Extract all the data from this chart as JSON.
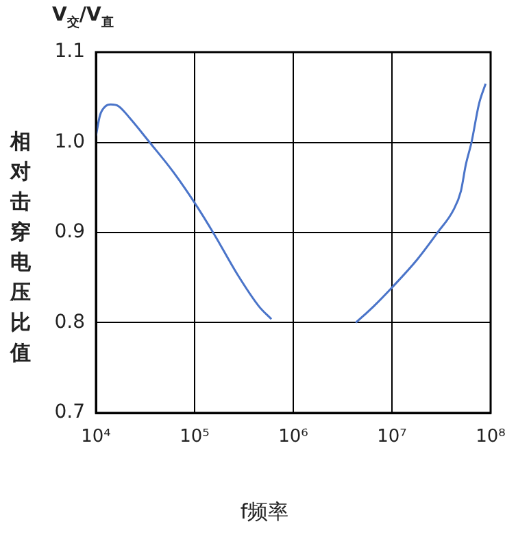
{
  "chart_data": {
    "type": "line",
    "xlabel": "f频率",
    "ylabel": "相对击穿电压比值",
    "annotations": [
      "V$_{交}$/V$_{直}$"
    ],
    "log": "x",
    "grid": true,
    "marker": "none",
    "line_style": "solid",
    "xlim": [
      10000,
      100000000
    ],
    "ylim": [
      0.7,
      1.1
    ],
    "xticks": [
      {
        "value": 10000,
        "label": "10⁴"
      },
      {
        "value": 100000,
        "label": "10⁵"
      },
      {
        "value": 1000000,
        "label": "10⁶"
      },
      {
        "value": 10000000,
        "label": "10⁷"
      },
      {
        "value": 100000000,
        "label": "10⁸"
      }
    ],
    "yticks": [
      0.7,
      0.8,
      0.9,
      {
        "value": 1,
        "label": "1.0"
      },
      1.1
    ],
    "series": [
      {
        "color": "#4a74c9",
        "x": [
          10000,
          11000,
          12500,
          14100,
          17000,
          22000,
          35000,
          60000,
          100000,
          160000,
          270000,
          450000,
          600000
        ],
        "values": [
          1.007,
          1.03,
          1.04,
          1.042,
          1.04,
          1.027,
          1.0,
          0.968,
          0.933,
          0.897,
          0.854,
          0.818,
          0.804
        ]
      },
      {
        "color": "#4a74c9",
        "x": [
          4300000,
          6500000,
          10000000,
          18000000,
          29000000,
          42000000,
          50000000,
          56000000,
          64000000,
          76000000,
          89000000
        ],
        "values": [
          0.8,
          0.818,
          0.839,
          0.87,
          0.9,
          0.925,
          0.946,
          0.975,
          1.0,
          1.042,
          1.065
        ]
      }
    ]
  }
}
